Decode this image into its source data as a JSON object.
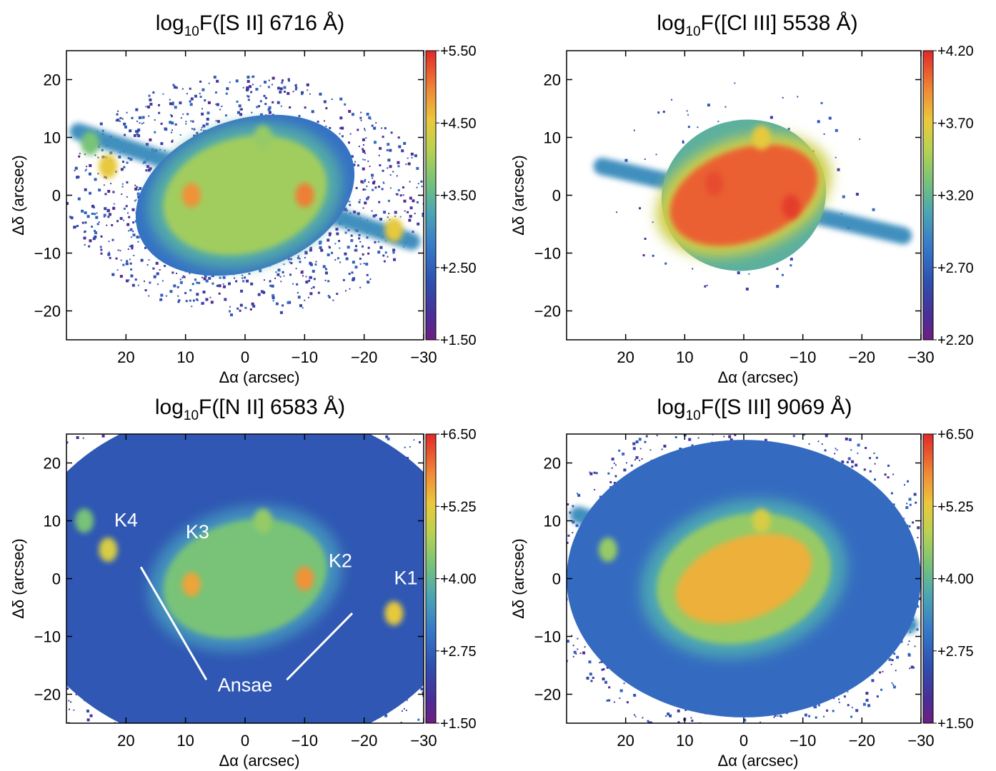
{
  "chart_data": [
    {
      "type": "heatmap",
      "title_parts": {
        "pre": "log",
        "sub": "10",
        "post": "F([S II] 6716 Å)"
      },
      "xlabel": "Δα (arcsec)",
      "ylabel": "Δδ (arcsec)",
      "xlim": [
        30,
        -30
      ],
      "ylim": [
        -25,
        25
      ],
      "xticks": [
        20,
        10,
        0,
        -10,
        -20,
        -30
      ],
      "yticks": [
        -20,
        -10,
        0,
        10,
        20
      ],
      "colorbar": {
        "range": [
          1.5,
          5.5
        ],
        "ticks": [
          "+1.50",
          "+2.50",
          "+3.50",
          "+4.50",
          "+5.50"
        ]
      },
      "morphology": {
        "core_center": [
          0,
          0
        ],
        "halo": {
          "semi_major": 19,
          "semi_minor": 13,
          "pa_deg": -20,
          "level": 0.3
        },
        "shell": {
          "semi_major": 14,
          "semi_minor": 10,
          "pa_deg": -15,
          "level": 0.62
        },
        "knots": [
          {
            "x": 9,
            "y": 0,
            "level": 0.85
          },
          {
            "x": -10,
            "y": 0,
            "level": 0.88
          },
          {
            "x": 23,
            "y": 5,
            "level": 0.75
          },
          {
            "x": 26,
            "y": 9,
            "level": 0.55
          },
          {
            "x": -25,
            "y": -6,
            "level": 0.75
          },
          {
            "x": -3,
            "y": 10,
            "level": 0.6
          }
        ],
        "jet": {
          "from": [
            28,
            11
          ],
          "to": [
            -28,
            -8
          ]
        },
        "speckle": "dense"
      }
    },
    {
      "type": "heatmap",
      "title_parts": {
        "pre": "log",
        "sub": "10",
        "post": "F([Cl III] 5538 Å)"
      },
      "xlabel": "Δα (arcsec)",
      "ylabel": "Δδ (arcsec)",
      "xlim": [
        30,
        -30
      ],
      "ylim": [
        -25,
        25
      ],
      "xticks": [
        20,
        10,
        0,
        -10,
        -20,
        -30
      ],
      "yticks": [
        -20,
        -10,
        0,
        10,
        20
      ],
      "colorbar": {
        "range": [
          2.2,
          4.2
        ],
        "ticks": [
          "+2.20",
          "+2.70",
          "+3.20",
          "+3.70",
          "+4.20"
        ]
      },
      "morphology": {
        "core_center": [
          0,
          0
        ],
        "halo": {
          "semi_major": 14,
          "semi_minor": 13,
          "pa_deg": -15,
          "level": 0.48
        },
        "shell": {
          "semi_major": 13,
          "semi_minor": 8,
          "pa_deg": -20,
          "level": 0.92
        },
        "knots": [
          {
            "x": -3,
            "y": 10,
            "level": 0.75
          },
          {
            "x": 5,
            "y": 2,
            "level": 0.95
          },
          {
            "x": -8,
            "y": -2,
            "level": 0.97
          }
        ],
        "jet": {
          "from": [
            24,
            5
          ],
          "to": [
            -27,
            -7
          ]
        },
        "speckle": "sparse"
      }
    },
    {
      "type": "heatmap",
      "title_parts": {
        "pre": "log",
        "sub": "10",
        "post": "F([N II] 6583 Å)"
      },
      "xlabel": "Δα (arcsec)",
      "ylabel": "Δδ (arcsec)",
      "xlim": [
        30,
        -30
      ],
      "ylim": [
        -25,
        25
      ],
      "xticks": [
        20,
        10,
        0,
        -10,
        -20,
        -30
      ],
      "yticks": [
        -20,
        -10,
        0,
        10,
        20
      ],
      "colorbar": {
        "range": [
          1.5,
          6.5
        ],
        "ticks": [
          "+1.50",
          "+2.75",
          "+4.00",
          "+5.25",
          "+6.50"
        ]
      },
      "annotations": [
        {
          "text": "K4",
          "x": 20,
          "y": 9
        },
        {
          "text": "K3",
          "x": 8,
          "y": 7
        },
        {
          "text": "K2",
          "x": -16,
          "y": 2
        },
        {
          "text": "K1",
          "x": -27,
          "y": -1
        },
        {
          "text": "Ansae",
          "x": 0,
          "y": -19.5
        }
      ],
      "ansae_lines": [
        {
          "from": [
            17.5,
            2
          ],
          "to": [
            6.5,
            -17.5
          ]
        },
        {
          "from": [
            -18,
            -6
          ],
          "to": [
            -7,
            -17.5
          ]
        }
      ],
      "morphology": {
        "core_center": [
          0,
          0
        ],
        "halo": {
          "semi_major": 38,
          "semi_minor": 30,
          "pa_deg": 0,
          "level": 0.22
        },
        "shell": {
          "semi_major": 14,
          "semi_minor": 10,
          "pa_deg": -15,
          "level": 0.55
        },
        "knots": [
          {
            "x": 9,
            "y": -1,
            "level": 0.82
          },
          {
            "x": -10,
            "y": 0,
            "level": 0.85
          },
          {
            "x": 23,
            "y": 5,
            "level": 0.72
          },
          {
            "x": 27,
            "y": 10,
            "level": 0.55
          },
          {
            "x": -25,
            "y": -6,
            "level": 0.75
          },
          {
            "x": -3,
            "y": 10,
            "level": 0.6
          }
        ],
        "jet": {
          "from": [
            28,
            11
          ],
          "to": [
            -28,
            -8
          ]
        },
        "speckle": "edge"
      }
    },
    {
      "type": "heatmap",
      "title_parts": {
        "pre": "log",
        "sub": "10",
        "post": "F([S III] 9069 Å)"
      },
      "xlabel": "Δα (arcsec)",
      "ylabel": "Δδ (arcsec)",
      "xlim": [
        30,
        -30
      ],
      "ylim": [
        -25,
        25
      ],
      "xticks": [
        20,
        10,
        0,
        -10,
        -20,
        -30
      ],
      "yticks": [
        -20,
        -10,
        0,
        10,
        20
      ],
      "colorbar": {
        "range": [
          1.5,
          6.5
        ],
        "ticks": [
          "+1.50",
          "+2.75",
          "+4.00",
          "+5.25",
          "+6.50"
        ]
      },
      "morphology": {
        "core_center": [
          0,
          0
        ],
        "halo": {
          "semi_major": 30,
          "semi_minor": 24,
          "pa_deg": 0,
          "level": 0.28
        },
        "shell": {
          "semi_major": 15,
          "semi_minor": 11,
          "pa_deg": -15,
          "level": 0.6
        },
        "inner": {
          "semi_major": 12,
          "semi_minor": 7,
          "pa_deg": -20,
          "level": 0.8
        },
        "knots": [
          {
            "x": -3,
            "y": 10,
            "level": 0.72
          },
          {
            "x": 23,
            "y": 5,
            "level": 0.6
          }
        ],
        "jet": {
          "from": [
            28,
            11
          ],
          "to": [
            -28,
            -8
          ]
        },
        "speckle": "edge"
      }
    }
  ]
}
